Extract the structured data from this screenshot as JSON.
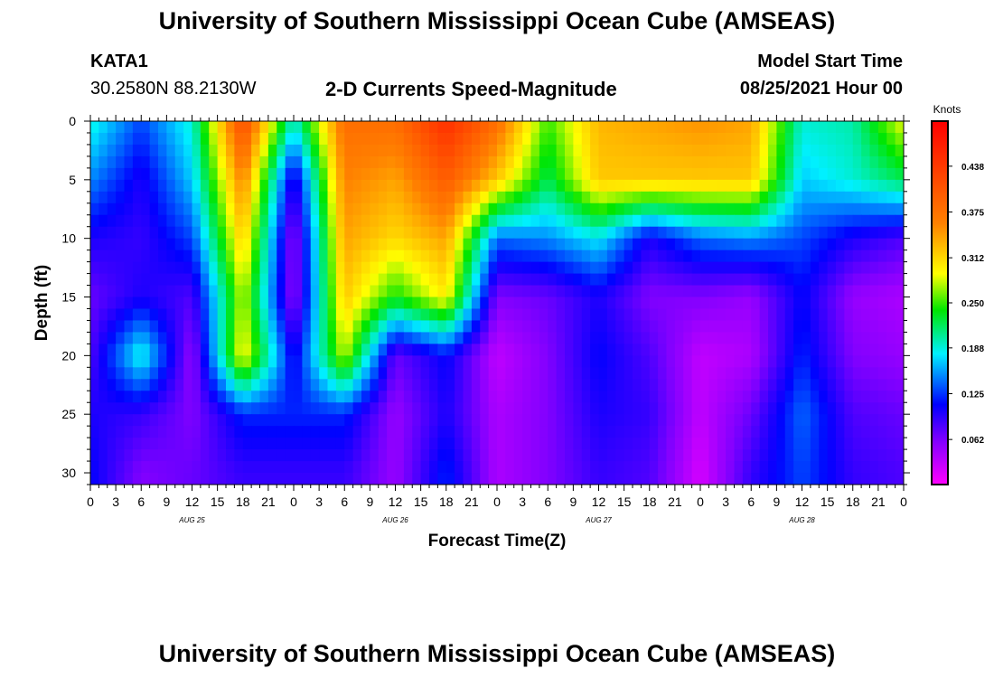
{
  "header": {
    "title_top": "University of Southern Mississippi Ocean Cube (AMSEAS)",
    "title_bottom": "University of Southern Mississippi Ocean Cube (AMSEAS)",
    "station": "KATA1",
    "coordinates": "30.2580N  88.2130W",
    "model_start_label": "Model Start Time",
    "model_start_value": "08/25/2021 Hour 00"
  },
  "chart_data": {
    "type": "heatmap",
    "title": "2-D Currents Speed-Magnitude",
    "xlabel": "Forecast Time(Z)",
    "ylabel": "Depth (ft)",
    "colorbar_label": "Knots",
    "ylim": [
      0,
      31
    ],
    "y_ticks": [
      "0",
      "5",
      "10",
      "15",
      "20",
      "25",
      "30"
    ],
    "x_ticks": [
      "0",
      "3",
      "6",
      "9",
      "12",
      "15",
      "18",
      "21",
      "0",
      "3",
      "6",
      "9",
      "12",
      "15",
      "18",
      "21",
      "0",
      "3",
      "6",
      "9",
      "12",
      "15",
      "18",
      "21",
      "0",
      "3",
      "6",
      "9",
      "12",
      "15",
      "18",
      "21",
      "0"
    ],
    "day_labels": [
      "AUG 25",
      "AUG 26",
      "AUG 27",
      "AUG 28"
    ],
    "colorbar_ticks": [
      "0.438",
      "0.375",
      "0.312",
      "0.250",
      "0.188",
      "0.125",
      "0.062"
    ],
    "colorbar_range": [
      0.0,
      0.5
    ],
    "grid": false,
    "depths_ft": [
      0,
      5,
      10,
      15,
      20,
      25,
      30
    ],
    "hours": [
      0,
      6,
      12,
      18,
      24,
      30,
      36,
      42,
      48,
      54,
      60,
      66,
      72,
      78,
      84,
      90,
      96
    ],
    "values": [
      [
        0.19,
        0.13,
        0.19,
        0.42,
        0.19,
        0.38,
        0.38,
        0.45,
        0.38,
        0.25,
        0.33,
        0.34,
        0.35,
        0.34,
        0.19,
        0.2,
        0.29
      ],
      [
        0.15,
        0.1,
        0.17,
        0.36,
        0.09,
        0.36,
        0.34,
        0.4,
        0.32,
        0.22,
        0.32,
        0.32,
        0.32,
        0.32,
        0.17,
        0.19,
        0.22
      ],
      [
        0.1,
        0.09,
        0.13,
        0.32,
        0.05,
        0.34,
        0.31,
        0.34,
        0.14,
        0.15,
        0.18,
        0.1,
        0.14,
        0.15,
        0.13,
        0.1,
        0.08
      ],
      [
        0.07,
        0.1,
        0.08,
        0.28,
        0.05,
        0.32,
        0.24,
        0.3,
        0.06,
        0.07,
        0.1,
        0.06,
        0.06,
        0.05,
        0.11,
        0.05,
        0.04
      ],
      [
        0.08,
        0.19,
        0.05,
        0.3,
        0.1,
        0.28,
        0.07,
        0.11,
        0.03,
        0.06,
        0.11,
        0.08,
        0.03,
        0.04,
        0.12,
        0.06,
        0.05
      ],
      [
        0.1,
        0.09,
        0.06,
        0.12,
        0.12,
        0.12,
        0.05,
        0.1,
        0.04,
        0.06,
        0.1,
        0.09,
        0.03,
        0.07,
        0.14,
        0.08,
        0.07
      ],
      [
        0.11,
        0.06,
        0.07,
        0.09,
        0.09,
        0.09,
        0.05,
        0.12,
        0.04,
        0.06,
        0.09,
        0.08,
        0.02,
        0.09,
        0.13,
        0.09,
        0.08
      ]
    ]
  }
}
